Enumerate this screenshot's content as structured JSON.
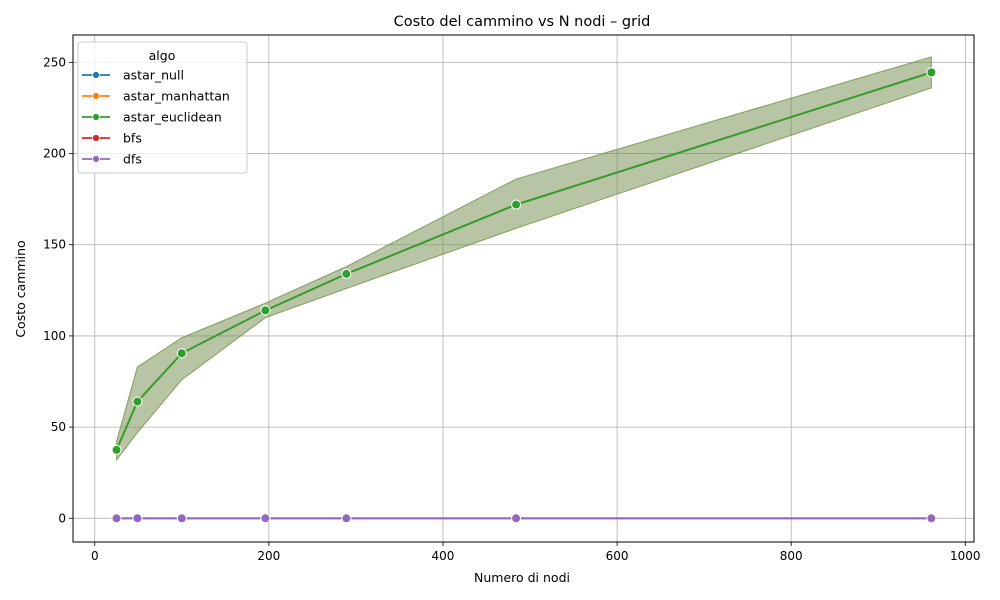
{
  "chart_data": {
    "type": "line",
    "title": "Costo del cammino vs N nodi – grid",
    "xlabel": "Numero di nodi",
    "ylabel": "Costo cammino",
    "xlim": [
      -25,
      1010
    ],
    "ylim": [
      -13,
      265
    ],
    "xticks": [
      0,
      200,
      400,
      600,
      800,
      1000
    ],
    "yticks": [
      0,
      50,
      100,
      150,
      200,
      250
    ],
    "grid": true,
    "legend": {
      "title": "algo",
      "placement": "top-left"
    },
    "x": [
      25,
      49,
      100,
      196,
      289,
      484,
      961
    ],
    "series": [
      {
        "name": "astar_null",
        "color": "#1f77b4",
        "values": [
          37.5,
          64,
          90.5,
          114,
          134,
          172,
          244.5
        ],
        "band_low": [
          32,
          47,
          76,
          110,
          126,
          159,
          236
        ],
        "band_high": [
          42,
          83,
          99,
          118,
          138,
          186,
          253
        ]
      },
      {
        "name": "astar_manhattan",
        "color": "#ff7f0e",
        "values": [
          37.5,
          64,
          90.5,
          114,
          134,
          172,
          244.5
        ],
        "band_low": [
          32,
          47,
          76,
          110,
          126,
          159,
          236
        ],
        "band_high": [
          42,
          83,
          99,
          118,
          138,
          186,
          253
        ]
      },
      {
        "name": "astar_euclidean",
        "color": "#2ca02c",
        "values": [
          37.5,
          64,
          90.5,
          114,
          134,
          172,
          244.5
        ],
        "band_low": [
          32,
          47,
          76,
          110,
          126,
          159,
          236
        ],
        "band_high": [
          42,
          83,
          99,
          118,
          138,
          186,
          253
        ]
      },
      {
        "name": "bfs",
        "color": "#d62728",
        "values": [
          0,
          0,
          0,
          0,
          0,
          0,
          0
        ]
      },
      {
        "name": "dfs",
        "color": "#9467bd",
        "values": [
          0,
          0,
          0,
          0,
          0,
          0,
          0
        ]
      }
    ]
  }
}
